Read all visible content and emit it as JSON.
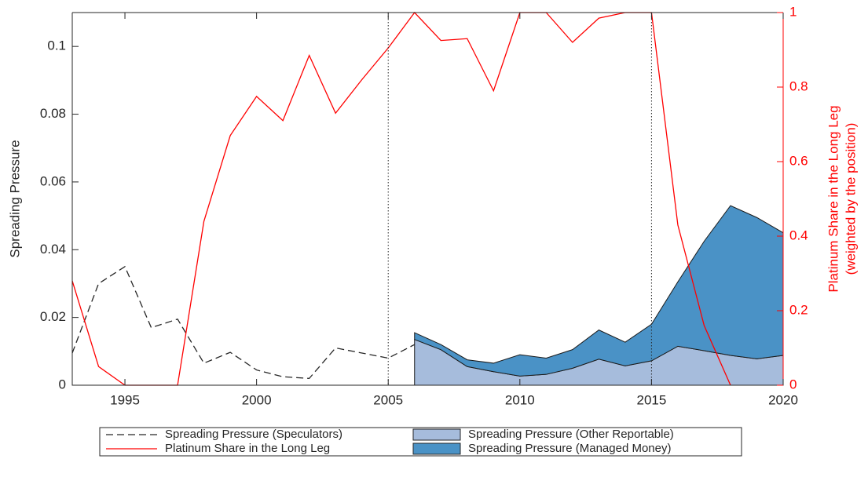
{
  "chart_data": {
    "type": "line",
    "ylabel": "Spreading Pressure",
    "y2label": [
      "Platinum Share in the Long Leg",
      "(weighted by the position)"
    ],
    "x": [
      1993,
      1994,
      1995,
      1996,
      1997,
      1998,
      1999,
      2000,
      2001,
      2002,
      2003,
      2004,
      2005,
      2006,
      2007,
      2008,
      2009,
      2010,
      2011,
      2012,
      2013,
      2014,
      2015,
      2016,
      2017,
      2018,
      2019,
      2020
    ],
    "xlim": [
      1993,
      2020
    ],
    "xticks": [
      1995,
      2000,
      2005,
      2010,
      2015,
      2020
    ],
    "ylim": [
      0,
      0.11
    ],
    "yticks": [
      0,
      0.02,
      0.04,
      0.06,
      0.08,
      0.1
    ],
    "y2lim": [
      0,
      1
    ],
    "y2ticks": [
      0,
      0.2,
      0.4,
      0.6,
      0.8,
      1
    ],
    "y2color": "#ff0000",
    "vlines": [
      2005,
      2015
    ],
    "series": [
      {
        "name": "Spreading Pressure (Speculators)",
        "kind": "line",
        "dash": true,
        "color": "#262626",
        "values": [
          0.0095,
          0.03,
          0.035,
          0.017,
          0.0195,
          0.0065,
          0.0097,
          0.0045,
          0.0025,
          0.002,
          0.011,
          0.0095,
          0.008,
          0.012,
          null,
          null,
          null,
          null,
          null,
          null,
          null,
          null,
          null,
          null,
          null,
          null,
          null,
          null
        ]
      },
      {
        "name": "Platinum Share in the Long Leg",
        "kind": "line",
        "axis": "y2",
        "color": "#ff0000",
        "values": [
          0.28,
          0.05,
          0,
          0,
          0,
          0.44,
          0.67,
          0.775,
          0.71,
          0.885,
          0.73,
          0.82,
          0.905,
          1,
          0.925,
          0.93,
          0.79,
          1,
          1,
          0.92,
          0.985,
          1,
          1,
          0.43,
          0.16,
          0,
          null,
          null
        ]
      },
      {
        "name": "Spreading Pressure (Other Reportable)",
        "kind": "area",
        "color": "#a6bcdc",
        "values": [
          null,
          null,
          null,
          null,
          null,
          null,
          null,
          null,
          null,
          null,
          null,
          null,
          null,
          0.0135,
          0.0105,
          0.0055,
          0.004,
          0.0027,
          0.0032,
          0.005,
          0.0077,
          0.0057,
          0.0072,
          0.0115,
          0.0102,
          0.0088,
          0.0078,
          0.0088
        ]
      },
      {
        "name": "Spreading Pressure (Managed Money)",
        "kind": "area",
        "color": "#4a92c6",
        "values": [
          null,
          null,
          null,
          null,
          null,
          null,
          null,
          null,
          null,
          null,
          null,
          null,
          null,
          0.002,
          0.0015,
          0.002,
          0.0025,
          0.0063,
          0.0048,
          0.0055,
          0.0086,
          0.007,
          0.0108,
          0.019,
          0.0323,
          0.0442,
          0.0417,
          0.0362
        ]
      }
    ]
  }
}
